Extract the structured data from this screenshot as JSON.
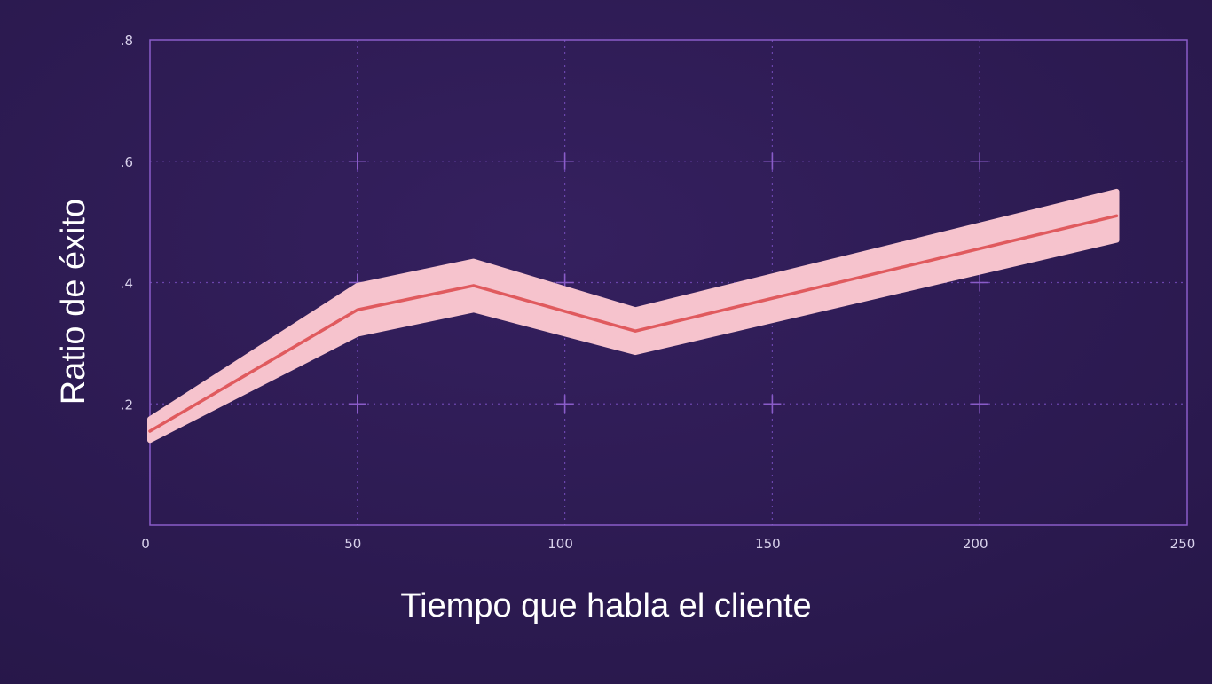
{
  "chart_data": {
    "type": "line",
    "xlabel": "Tiempo que habla el cliente",
    "ylabel": "Ratio de éxito",
    "xlim": [
      0,
      250
    ],
    "ylim": [
      0,
      0.8
    ],
    "x_ticks": [
      {
        "value": 0,
        "label": "0"
      },
      {
        "value": 50,
        "label": "50"
      },
      {
        "value": 100,
        "label": "100"
      },
      {
        "value": 150,
        "label": "150"
      },
      {
        "value": 200,
        "label": "200"
      },
      {
        "value": 250,
        "label": "250"
      }
    ],
    "y_ticks": [
      {
        "value": 0.2,
        "label": ".2"
      },
      {
        "value": 0.4,
        "label": ".4"
      },
      {
        "value": 0.6,
        "label": ".6"
      },
      {
        "value": 0.8,
        "label": ".8"
      }
    ],
    "grid": true,
    "series": [
      {
        "x": [
          0,
          50,
          78,
          117,
          233
        ],
        "y": [
          0.155,
          0.355,
          0.395,
          0.32,
          0.51
        ],
        "lower": [
          0.14,
          0.315,
          0.355,
          0.285,
          0.47
        ],
        "upper": [
          0.175,
          0.395,
          0.435,
          0.355,
          0.55
        ],
        "color": "#e05a5e",
        "band_color": "#f6c3cd"
      }
    ],
    "colors": {
      "background": "#2c1a54",
      "plot_border": "#8a5cc9",
      "grid": "#6b45ad",
      "grid_cross": "#8a5cc9"
    }
  }
}
